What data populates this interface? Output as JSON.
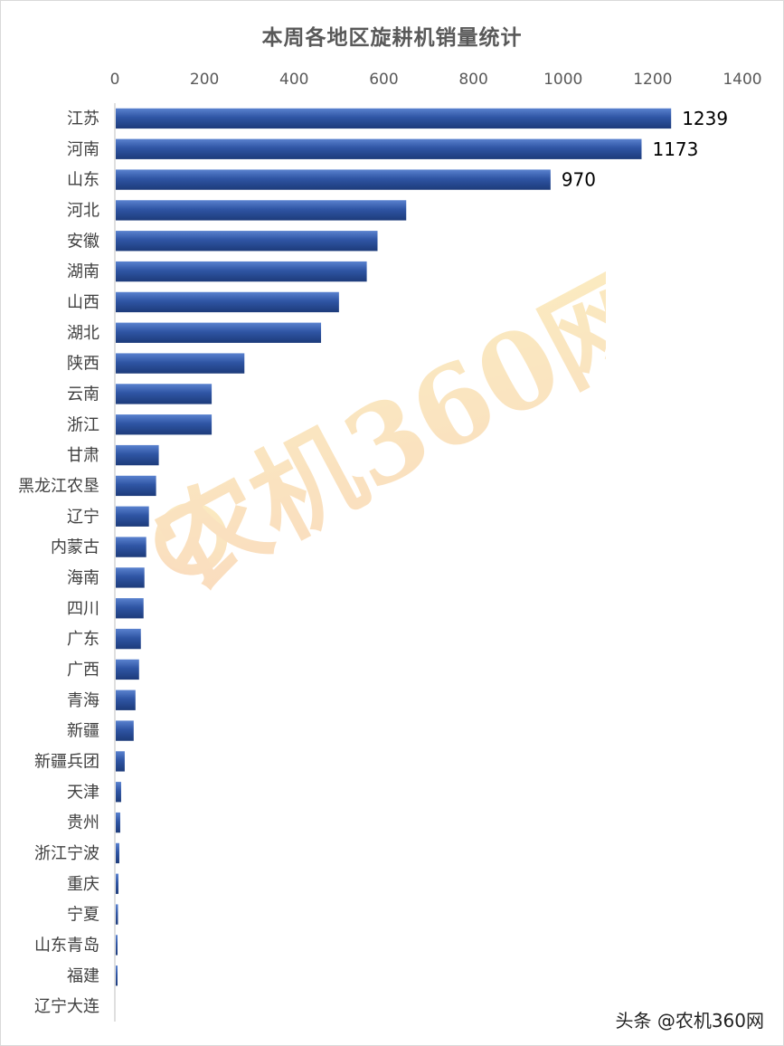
{
  "chart_data": {
    "type": "bar",
    "orientation": "horizontal",
    "title": "本周各地区旋耕机销量统计",
    "x_axis_position": "top",
    "xlim": [
      0,
      1400
    ],
    "xticks": [
      0,
      200,
      400,
      600,
      800,
      1000,
      1200,
      1400
    ],
    "grid": false,
    "categories": [
      "江苏",
      "河南",
      "山东",
      "河北",
      "安徽",
      "湖南",
      "山西",
      "湖北",
      "陕西",
      "云南",
      "浙江",
      "甘肃",
      "黑龙江农垦",
      "辽宁",
      "内蒙古",
      "海南",
      "四川",
      "广东",
      "广西",
      "青海",
      "新疆",
      "新疆兵团",
      "天津",
      "贵州",
      "浙江宁波",
      "重庆",
      "宁夏",
      "山东青岛",
      "福建",
      "辽宁大连"
    ],
    "values": [
      1239,
      1173,
      970,
      648,
      584,
      560,
      498,
      458,
      287,
      214,
      214,
      96,
      90,
      74,
      68,
      64,
      62,
      56,
      52,
      44,
      40,
      20,
      12,
      10,
      8,
      6,
      5,
      4,
      4,
      0
    ],
    "data_labels": [
      {
        "category": "江苏",
        "text": "1239"
      },
      {
        "category": "河南",
        "text": "1173"
      },
      {
        "category": "山东",
        "text": "970"
      }
    ],
    "bar_color": "#2F55A4",
    "watermark": "农机360网",
    "watermark_colors": [
      "#F6C08A",
      "#F8DC8F"
    ]
  },
  "credit": "头条 @农机360网"
}
